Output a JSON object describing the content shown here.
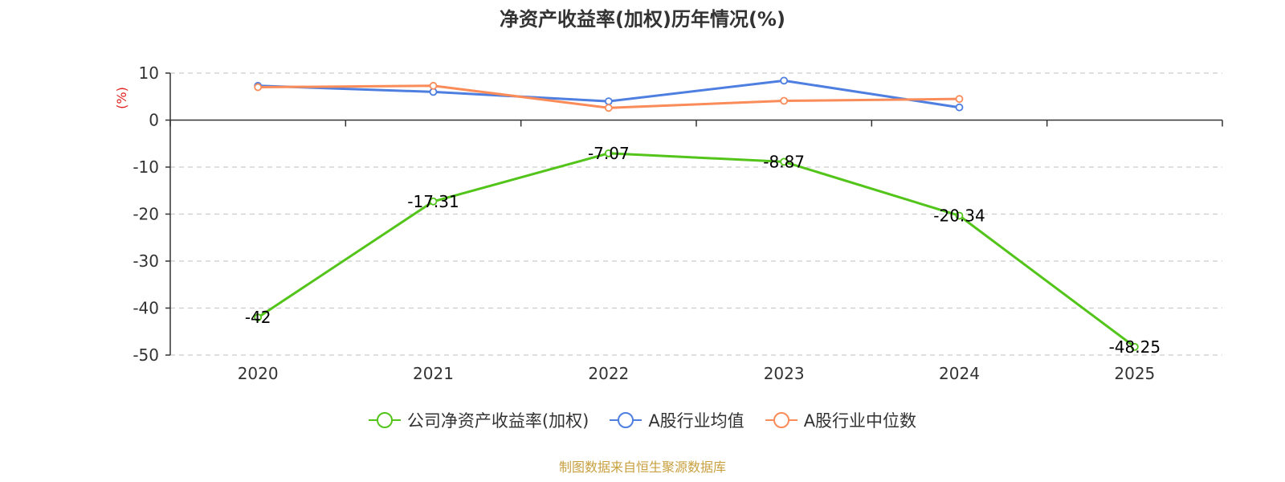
{
  "chart_data": {
    "type": "line",
    "title": "净资产收益率(加权)历年情况(%)",
    "ylabel": "(%)",
    "categories": [
      "2020",
      "2021",
      "2022",
      "2023",
      "2024",
      "2025"
    ],
    "ylim": [
      -50,
      10
    ],
    "yticks": [
      10,
      0,
      -10,
      -20,
      -30,
      -40,
      -50
    ],
    "grid": true,
    "legend_position": "bottom",
    "series": [
      {
        "name": "公司净资产收益率(加权)",
        "color": "#52c41a",
        "values": [
          -42,
          -17.31,
          -7.07,
          -8.87,
          -20.34,
          -48.25
        ],
        "labels": [
          "-42",
          "-17.31",
          "-7.07",
          "-8.87",
          "-20.34",
          "-48.25"
        ]
      },
      {
        "name": "A股行业均值",
        "color": "#4e7fe0",
        "values": [
          7.3,
          6.0,
          4.0,
          8.4,
          2.7,
          null
        ]
      },
      {
        "name": "A股行业中位数",
        "color": "#fa8c5a",
        "values": [
          7.0,
          7.3,
          2.6,
          4.1,
          4.5,
          null
        ]
      }
    ]
  },
  "footer": {
    "source": "制图数据来自恒生聚源数据库"
  }
}
